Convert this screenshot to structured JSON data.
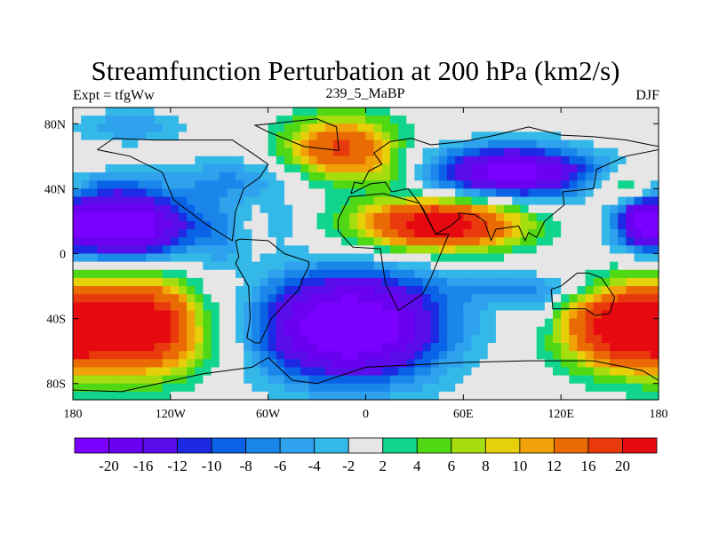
{
  "chart_data": {
    "type": "heatmap",
    "title": "Streamfunction Perturbation at 200 hPa (km2/s)",
    "left_string": "Expt = tfgWw",
    "center_string": "239_5_MaBP",
    "right_string": "DJF",
    "x_axis": {
      "range": [
        -180,
        180
      ],
      "ticks": [
        -180,
        -120,
        -60,
        0,
        60,
        120,
        180
      ],
      "tick_labels": [
        "180",
        "120W",
        "60W",
        "0",
        "60E",
        "120E",
        "180"
      ]
    },
    "y_axis": {
      "range": [
        -90,
        90
      ],
      "ticks": [
        80,
        40,
        0,
        -40,
        -80
      ],
      "tick_labels": [
        "80N",
        "40N",
        "0",
        "40S",
        "80S"
      ]
    },
    "levels": [
      -20,
      -16,
      -12,
      -10,
      -8,
      -6,
      -4,
      -2,
      2,
      4,
      6,
      8,
      10,
      12,
      16,
      20
    ],
    "level_labels": [
      "-20",
      "-16",
      "-12",
      "-10",
      "-8",
      "-6",
      "-4",
      "-2",
      "2",
      "4",
      "6",
      "8",
      "10",
      "12",
      "16",
      "20"
    ],
    "colors": [
      "#7a00ff",
      "#6a00f0",
      "#5a0cea",
      "#1c2ae4",
      "#0a62e6",
      "#1a86ea",
      "#2fa2ee",
      "#33b8e8",
      "#e6e6e6",
      "#11d58c",
      "#4fd813",
      "#a5dd0f",
      "#e6d009",
      "#f0a208",
      "#ea6a04",
      "#e83a0c",
      "#e60a10"
    ],
    "features": [
      {
        "lon": -150,
        "lat": 17,
        "a": -26,
        "sx": 30,
        "sy": 14
      },
      {
        "lon": -80,
        "lat": 45,
        "a": -6,
        "sx": 30,
        "sy": 10
      },
      {
        "lon": -145,
        "lat": 78,
        "a": -6,
        "sx": 22,
        "sy": 7
      },
      {
        "lon": -155,
        "lat": 42,
        "a": -4,
        "sx": 16,
        "sy": 6
      },
      {
        "lon": -140,
        "lat": -45,
        "a": 25,
        "sx": 34,
        "sy": 20
      },
      {
        "lon": -100,
        "lat": -40,
        "a": -4,
        "sx": 10,
        "sy": 16
      },
      {
        "lon": -90,
        "lat": 10,
        "a": -4,
        "sx": 10,
        "sy": 16
      },
      {
        "lon": -15,
        "lat": 65,
        "a": 17,
        "sx": 24,
        "sy": 14
      },
      {
        "lon": -50,
        "lat": 20,
        "a": -4,
        "sx": 8,
        "sy": 8
      },
      {
        "lon": 45,
        "lat": 18,
        "a": 25,
        "sx": 35,
        "sy": 11
      },
      {
        "lon": 15,
        "lat": 50,
        "a": 4,
        "sx": 12,
        "sy": 6
      },
      {
        "lon": 90,
        "lat": 50,
        "a": -23,
        "sx": 34,
        "sy": 11
      },
      {
        "lon": 170,
        "lat": 20,
        "a": -14,
        "sx": 10,
        "sy": 10
      },
      {
        "lon": 160,
        "lat": 40,
        "a": 7,
        "sx": 14,
        "sy": 7
      },
      {
        "lon": -10,
        "lat": -45,
        "a": -27,
        "sx": 40,
        "sy": 23
      },
      {
        "lon": 100,
        "lat": -22,
        "a": -6,
        "sx": 35,
        "sy": 7
      },
      {
        "lon": 160,
        "lat": -45,
        "a": 24,
        "sx": 28,
        "sy": 18
      },
      {
        "lon": 108,
        "lat": -35,
        "a": -4,
        "sx": 8,
        "sy": 10
      }
    ],
    "map_outline": [
      [
        [
          -16.5,
          63.5
        ],
        [
          -38,
          66
        ],
        [
          -60,
          75
        ],
        [
          -68,
          79
        ],
        [
          -30,
          83
        ],
        [
          -18,
          78
        ],
        [
          -16.5,
          63.5
        ]
      ],
      [
        [
          -165,
          64
        ],
        [
          -145,
          60
        ],
        [
          -125,
          50
        ],
        [
          -118,
          33
        ],
        [
          -98,
          18
        ],
        [
          -82,
          8
        ],
        [
          -80,
          26
        ],
        [
          -75,
          40
        ],
        [
          -65,
          47
        ],
        [
          -60,
          55
        ],
        [
          -70,
          62
        ],
        [
          -82,
          70
        ],
        [
          -100,
          70
        ],
        [
          -130,
          70
        ],
        [
          -155,
          71
        ],
        [
          -165,
          64
        ]
      ],
      [
        [
          -80,
          8
        ],
        [
          -78,
          -2
        ],
        [
          -80,
          -6
        ],
        [
          -72,
          -20
        ],
        [
          -71,
          -40
        ],
        [
          -73,
          -52
        ],
        [
          -68,
          -55
        ],
        [
          -65,
          -55
        ],
        [
          -58,
          -40
        ],
        [
          -41,
          -22
        ],
        [
          -39,
          -16
        ],
        [
          -35,
          -8
        ],
        [
          -35,
          -5
        ],
        [
          -50,
          0
        ],
        [
          -60,
          8
        ],
        [
          -77,
          9
        ],
        [
          -80,
          8
        ]
      ],
      [
        [
          -9,
          37
        ],
        [
          -7,
          44
        ],
        [
          -2,
          43
        ],
        [
          2,
          51
        ],
        [
          10,
          55
        ],
        [
          5,
          62
        ],
        [
          15,
          69
        ],
        [
          28,
          71
        ],
        [
          40,
          67
        ],
        [
          60,
          69
        ],
        [
          80,
          73
        ],
        [
          100,
          78
        ],
        [
          120,
          73
        ],
        [
          140,
          72
        ],
        [
          160,
          70
        ],
        [
          180,
          66
        ],
        [
          180,
          64
        ],
        [
          160,
          60
        ],
        [
          142,
          52
        ],
        [
          140,
          40
        ],
        [
          121,
          38
        ],
        [
          122,
          30
        ],
        [
          110,
          20
        ],
        [
          105,
          10
        ],
        [
          100,
          13
        ],
        [
          98,
          8
        ],
        [
          94,
          17
        ],
        [
          80,
          15
        ],
        [
          77,
          8
        ],
        [
          73,
          20
        ],
        [
          67,
          24
        ],
        [
          57,
          25
        ],
        [
          58,
          22
        ],
        [
          52,
          17
        ],
        [
          43,
          12
        ],
        [
          35,
          28
        ],
        [
          33,
          31
        ],
        [
          26,
          40
        ],
        [
          16,
          38
        ],
        [
          12,
          44
        ],
        [
          3,
          43
        ],
        [
          -9,
          37
        ]
      ],
      [
        [
          -17,
          21
        ],
        [
          -10,
          35
        ],
        [
          11,
          37
        ],
        [
          33,
          31
        ],
        [
          43,
          12
        ],
        [
          51,
          12
        ],
        [
          40,
          -15
        ],
        [
          35,
          -25
        ],
        [
          20,
          -35
        ],
        [
          12,
          -18
        ],
        [
          9,
          3
        ],
        [
          -8,
          4
        ],
        [
          -17,
          14
        ],
        [
          -17,
          21
        ]
      ],
      [
        [
          114,
          -22
        ],
        [
          120,
          -20
        ],
        [
          130,
          -12
        ],
        [
          137,
          -12
        ],
        [
          145,
          -15
        ],
        [
          153,
          -27
        ],
        [
          150,
          -37
        ],
        [
          141,
          -38
        ],
        [
          135,
          -34
        ],
        [
          115,
          -34
        ],
        [
          114,
          -22
        ]
      ],
      [
        [
          -60,
          -64
        ],
        [
          -45,
          -78
        ],
        [
          -30,
          -80
        ],
        [
          0,
          -70
        ],
        [
          60,
          -67
        ],
        [
          100,
          -66
        ],
        [
          140,
          -66
        ],
        [
          170,
          -72
        ],
        [
          180,
          -78
        ],
        [
          180,
          -90
        ],
        [
          -180,
          -90
        ],
        [
          -180,
          -84
        ],
        [
          -150,
          -85
        ],
        [
          -100,
          -74
        ],
        [
          -70,
          -70
        ],
        [
          -60,
          -64
        ]
      ]
    ]
  }
}
